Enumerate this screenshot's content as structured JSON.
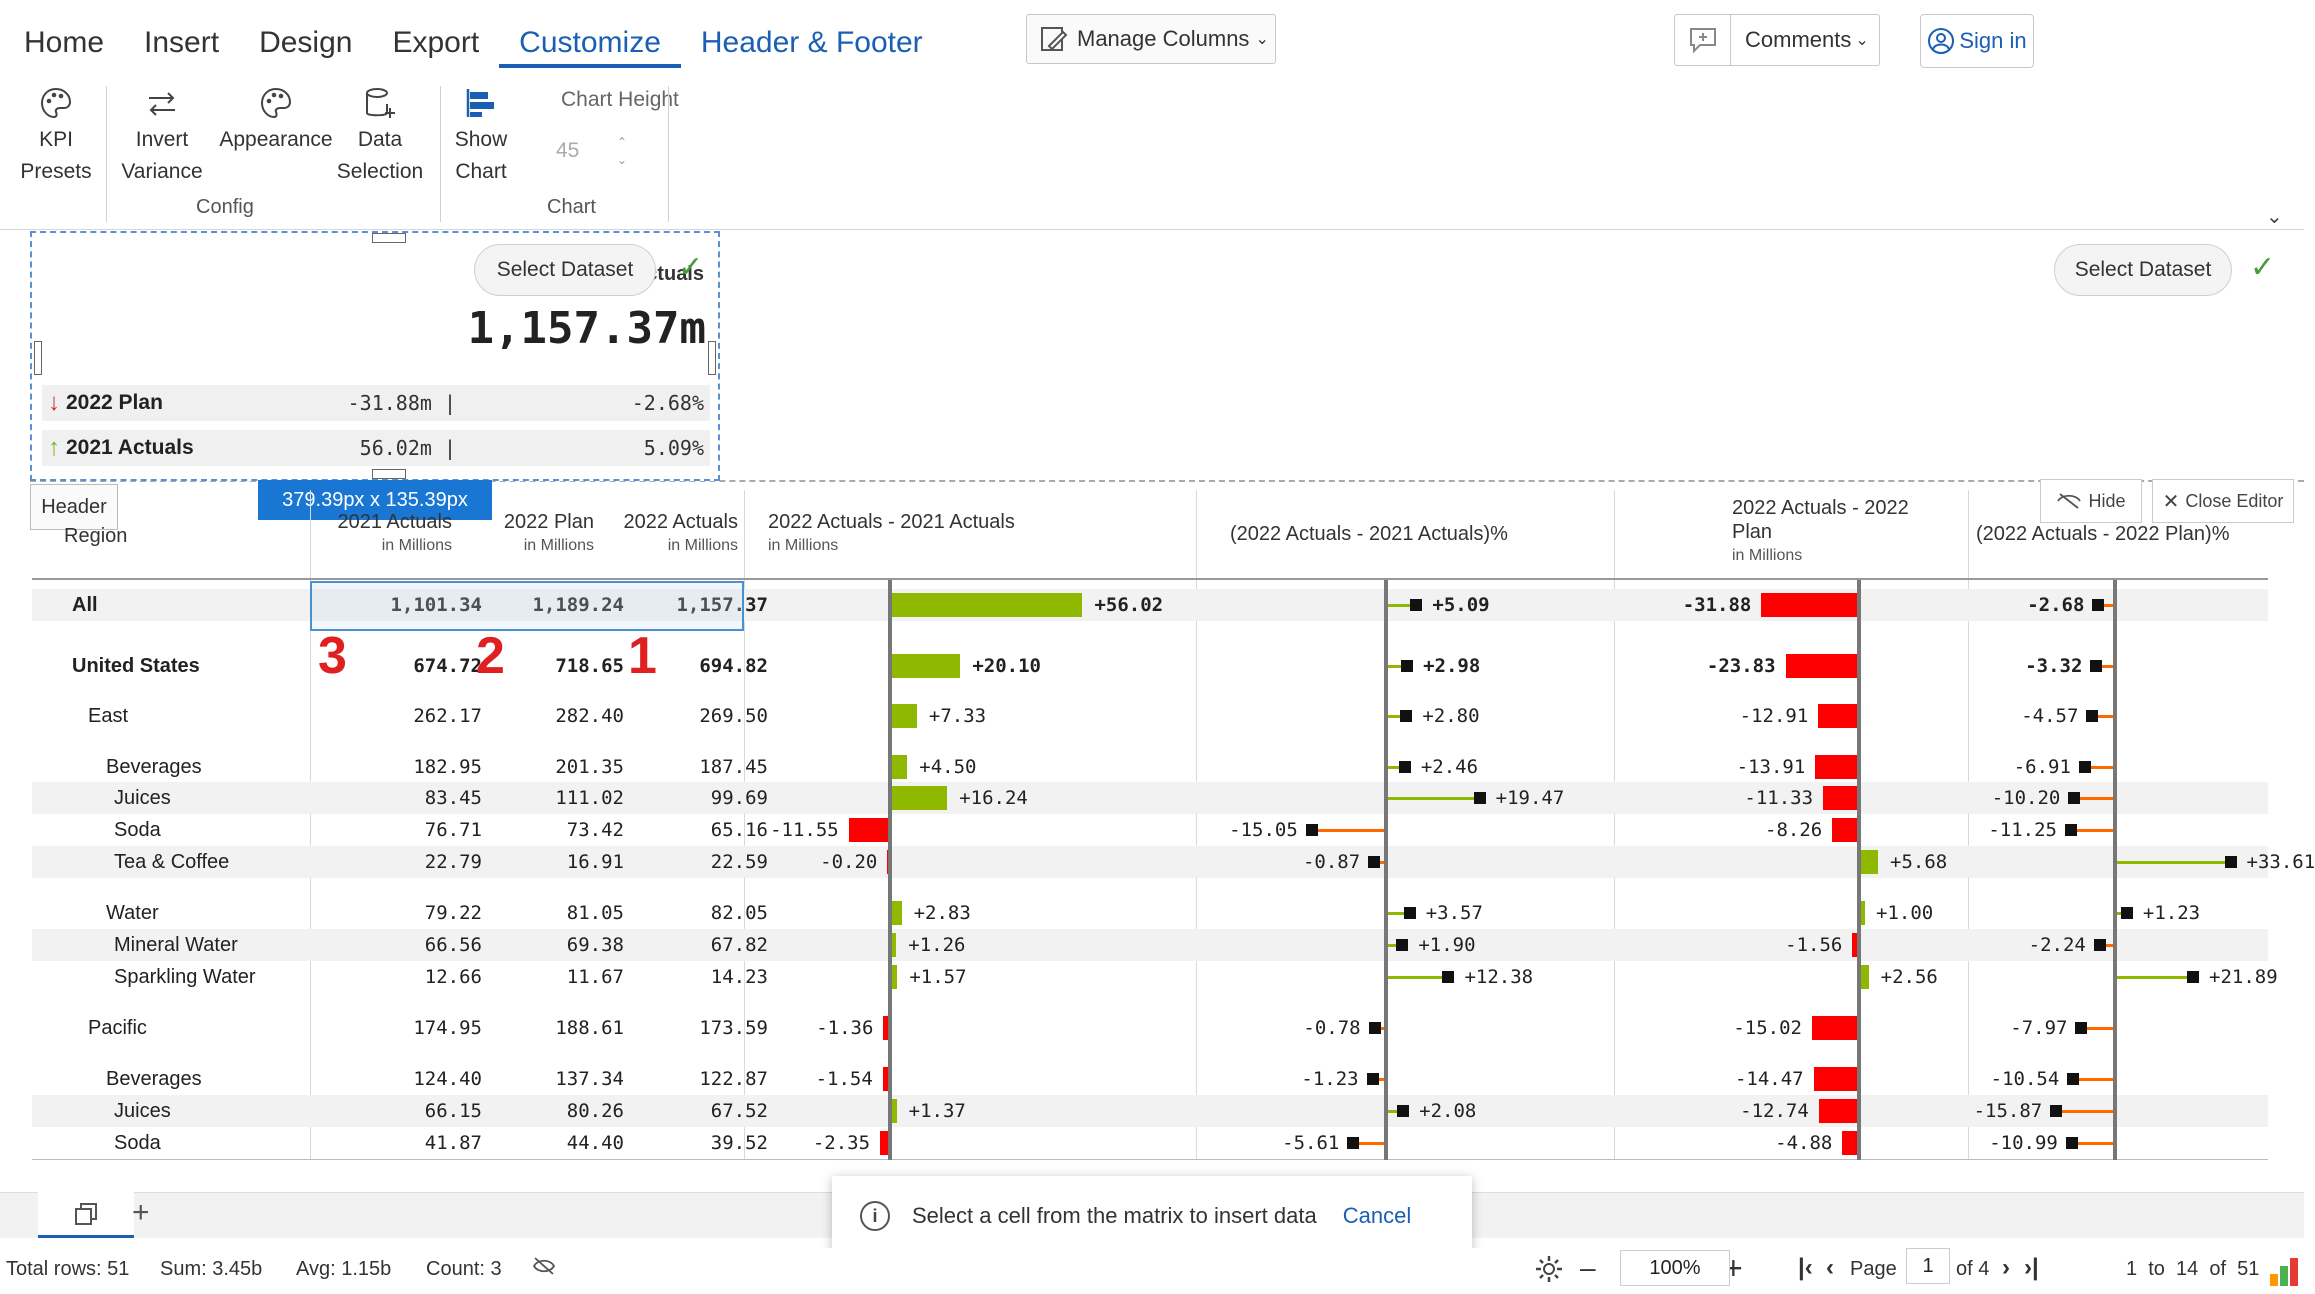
{
  "ribbon": {
    "tabs": [
      "Home",
      "Insert",
      "Design",
      "Export",
      "Customize",
      "Header & Footer"
    ],
    "manage_columns": "Manage Columns",
    "comments": "Comments",
    "sign_in": "Sign in",
    "buttons": {
      "kpi_presets": [
        "KPI",
        "Presets"
      ],
      "invert_variance": [
        "Invert",
        "Variance"
      ],
      "appearance": [
        "Appearance",
        ""
      ],
      "data_selection": [
        "Data",
        "Selection"
      ],
      "show_chart": [
        "Show",
        "Chart"
      ]
    },
    "chart_height_label": "Chart Height",
    "chart_height_value": "45",
    "group_config": "Config",
    "group_chart": "Chart"
  },
  "header_editor": {
    "select_dataset": "Select Dataset",
    "kpi_title_fragment": "ctuals",
    "kpi_value": "1,157.37m",
    "kpi_rows": [
      {
        "arrow": "↓",
        "label": "2022 Plan",
        "abs": "-31.88m |",
        "pct": "-2.68%",
        "color": "#d32f2f"
      },
      {
        "arrow": "↑",
        "label": "2021 Actuals",
        "abs": "56.02m |",
        "pct": "5.09%",
        "color": "#7cb518"
      }
    ],
    "dimensions": "379.39px x 135.39px",
    "header_tag": "Header",
    "hide": "Hide",
    "close_editor": "Close Editor"
  },
  "table": {
    "headers": {
      "region": "Region",
      "c1": "2021 Actuals",
      "c1_sub": "in Millions",
      "c2": "2022 Plan",
      "c2_sub": "in Millions",
      "c3": "2022 Actuals",
      "c3_sub": "in Millions",
      "v1": "2022 Actuals - 2021 Actuals",
      "v1_sub": "in Millions",
      "v2": "(2022 Actuals - 2021 Actuals)%",
      "v3a": "2022 Actuals - 2022",
      "v3b": "Plan",
      "v3_sub": "in Millions",
      "v4": "(2022 Actuals - 2022 Plan)%"
    },
    "rows": [
      {
        "name": "All",
        "indent": 0,
        "bold": true,
        "a21": "1,101.34",
        "p22": "1,189.24",
        "a22": "1,157.37",
        "d1": 56.02,
        "d1t": "+56.02",
        "d2": 5.09,
        "d2t": "+5.09",
        "d3": -31.88,
        "d3t": "-31.88",
        "d4": -2.68,
        "d4t": "-2.68"
      },
      {
        "name": "United States",
        "indent": 0,
        "bold": true,
        "a21": "674.72",
        "p22": "718.65",
        "a22": "694.82",
        "d1": 20.1,
        "d1t": "+20.10",
        "d2": 2.98,
        "d2t": "+2.98",
        "d3": -23.83,
        "d3t": "-23.83",
        "d4": -3.32,
        "d4t": "-3.32"
      },
      {
        "name": "East",
        "indent": 1,
        "bold": false,
        "a21": "262.17",
        "p22": "282.40",
        "a22": "269.50",
        "d1": 7.33,
        "d1t": "+7.33",
        "d2": 2.8,
        "d2t": "+2.80",
        "d3": -12.91,
        "d3t": "-12.91",
        "d4": -4.57,
        "d4t": "-4.57"
      },
      {
        "name": "Beverages",
        "indent": 2,
        "bold": false,
        "a21": "182.95",
        "p22": "201.35",
        "a22": "187.45",
        "d1": 4.5,
        "d1t": "+4.50",
        "d2": 2.46,
        "d2t": "+2.46",
        "d3": -13.91,
        "d3t": "-13.91",
        "d4": -6.91,
        "d4t": "-6.91"
      },
      {
        "name": "Juices",
        "indent": 3,
        "bold": false,
        "a21": "83.45",
        "p22": "111.02",
        "a22": "99.69",
        "d1": 16.24,
        "d1t": "+16.24",
        "d2": 19.47,
        "d2t": "+19.47",
        "d3": -11.33,
        "d3t": "-11.33",
        "d4": -10.2,
        "d4t": "-10.20"
      },
      {
        "name": "Soda",
        "indent": 3,
        "bold": false,
        "a21": "76.71",
        "p22": "73.42",
        "a22": "65.16",
        "d1": -11.55,
        "d1t": "-11.55",
        "d2": -15.05,
        "d2t": "-15.05",
        "d3": -8.26,
        "d3t": "-8.26",
        "d4": -11.25,
        "d4t": "-11.25"
      },
      {
        "name": "Tea & Coffee",
        "indent": 3,
        "bold": false,
        "a21": "22.79",
        "p22": "16.91",
        "a22": "22.59",
        "d1": -0.2,
        "d1t": "-0.20",
        "d2": -0.87,
        "d2t": "-0.87",
        "d3": 5.68,
        "d3t": "+5.68",
        "d4": 33.61,
        "d4t": "+33.61"
      },
      {
        "name": "Water",
        "indent": 2,
        "bold": false,
        "a21": "79.22",
        "p22": "81.05",
        "a22": "82.05",
        "d1": 2.83,
        "d1t": "+2.83",
        "d2": 3.57,
        "d2t": "+3.57",
        "d3": 1.0,
        "d3t": "+1.00",
        "d4": 1.23,
        "d4t": "+1.23"
      },
      {
        "name": "Mineral Water",
        "indent": 3,
        "bold": false,
        "a21": "66.56",
        "p22": "69.38",
        "a22": "67.82",
        "d1": 1.26,
        "d1t": "+1.26",
        "d2": 1.9,
        "d2t": "+1.90",
        "d3": -1.56,
        "d3t": "-1.56",
        "d4": -2.24,
        "d4t": "-2.24"
      },
      {
        "name": "Sparkling Water",
        "indent": 3,
        "bold": false,
        "a21": "12.66",
        "p22": "11.67",
        "a22": "14.23",
        "d1": 1.57,
        "d1t": "+1.57",
        "d2": 12.38,
        "d2t": "+12.38",
        "d3": 2.56,
        "d3t": "+2.56",
        "d4": 21.89,
        "d4t": "+21.89"
      },
      {
        "name": "Pacific",
        "indent": 1,
        "bold": false,
        "a21": "174.95",
        "p22": "188.61",
        "a22": "173.59",
        "d1": -1.36,
        "d1t": "-1.36",
        "d2": -0.78,
        "d2t": "-0.78",
        "d3": -15.02,
        "d3t": "-15.02",
        "d4": -7.97,
        "d4t": "-7.97"
      },
      {
        "name": "Beverages",
        "indent": 2,
        "bold": false,
        "a21": "124.40",
        "p22": "137.34",
        "a22": "122.87",
        "d1": -1.54,
        "d1t": "-1.54",
        "d2": -1.23,
        "d2t": "-1.23",
        "d3": -14.47,
        "d3t": "-14.47",
        "d4": -10.54,
        "d4t": "-10.54"
      },
      {
        "name": "Juices",
        "indent": 3,
        "bold": false,
        "a21": "66.15",
        "p22": "80.26",
        "a22": "67.52",
        "d1": 1.37,
        "d1t": "+1.37",
        "d2": 2.08,
        "d2t": "+2.08",
        "d3": -12.74,
        "d3t": "-12.74",
        "d4": -15.87,
        "d4t": "-15.87"
      },
      {
        "name": "Soda",
        "indent": 3,
        "bold": false,
        "a21": "41.87",
        "p22": "44.40",
        "a22": "39.52",
        "d1": -2.35,
        "d1t": "-2.35",
        "d2": -5.61,
        "d2t": "-5.61",
        "d3": -4.88,
        "d3t": "-4.88",
        "d4": -10.99,
        "d4t": "-10.99"
      }
    ],
    "rank_labels": [
      "3",
      "2",
      "1"
    ]
  },
  "toast": {
    "message": "Select a cell from the matrix to insert data",
    "cancel": "Cancel"
  },
  "status": {
    "total_rows": "Total rows: 51",
    "sum": "Sum: 3.45b",
    "avg": "Avg: 1.15b",
    "count": "Count: 3",
    "zoom": "100%",
    "page_label": "Page",
    "page_value": "1",
    "page_of": "of 4",
    "range": "1  to  14  of  51"
  },
  "colors": {
    "accent": "#1a5fb4",
    "positive": "#8fb800",
    "negative": "#ff0000",
    "connector": "#ff6a00"
  }
}
